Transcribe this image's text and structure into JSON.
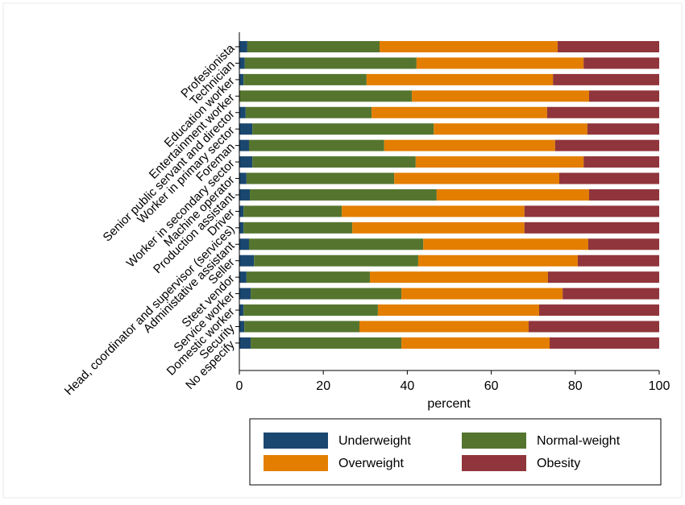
{
  "chart_data": {
    "type": "stacked-bar-horizontal",
    "categories": [
      "Profesionista",
      "Technician",
      "Education worker",
      "Entertainment worker",
      "Senior public servant and director",
      "Worker in primary sector",
      "Foreman",
      "Worker in secondary sector",
      "Machine operator",
      "Production assistant",
      "Driver",
      "Head, coordinator and supervisor (services)",
      "Administative assistant",
      "Seller",
      "Steet vendor",
      "Service worker",
      "Domestic worker",
      "Security",
      "No especify"
    ],
    "series": [
      {
        "name": "Underweight",
        "color": "#1a476f",
        "values": [
          1.9,
          1.3,
          1.0,
          0,
          1.5,
          3.1,
          2.3,
          3.1,
          1.7,
          2.5,
          1.0,
          1.0,
          2.3,
          3.5,
          1.7,
          2.7,
          1.0,
          1.2,
          2.7
        ]
      },
      {
        "name": "Normal-weight",
        "color": "#55752f",
        "values": [
          31.5,
          40.9,
          29.3,
          41.1,
          30.0,
          43.2,
          32.2,
          38.9,
          35.2,
          44.5,
          23.4,
          25.9,
          41.5,
          39.1,
          29.4,
          35.9,
          32.0,
          27.4,
          35.9
        ]
      },
      {
        "name": "Overweight",
        "color": "#e37e00",
        "values": [
          42.4,
          39.8,
          44.4,
          42.2,
          41.8,
          36.6,
          40.7,
          40.0,
          39.3,
          36.3,
          43.5,
          41.0,
          39.3,
          38.0,
          42.4,
          38.4,
          38.4,
          40.3,
          35.3
        ]
      },
      {
        "name": "Obesity",
        "color": "#90353b",
        "values": [
          24.2,
          18.0,
          25.3,
          16.7,
          26.7,
          17.1,
          24.8,
          18.0,
          23.8,
          16.7,
          32.1,
          32.1,
          16.9,
          19.4,
          26.5,
          23.0,
          28.6,
          31.1,
          26.1
        ]
      }
    ],
    "xlabel": "percent",
    "xlim": [
      0,
      100
    ],
    "xticks": [
      0,
      20,
      40,
      60,
      80,
      100
    ],
    "legend_position": "bottom"
  }
}
